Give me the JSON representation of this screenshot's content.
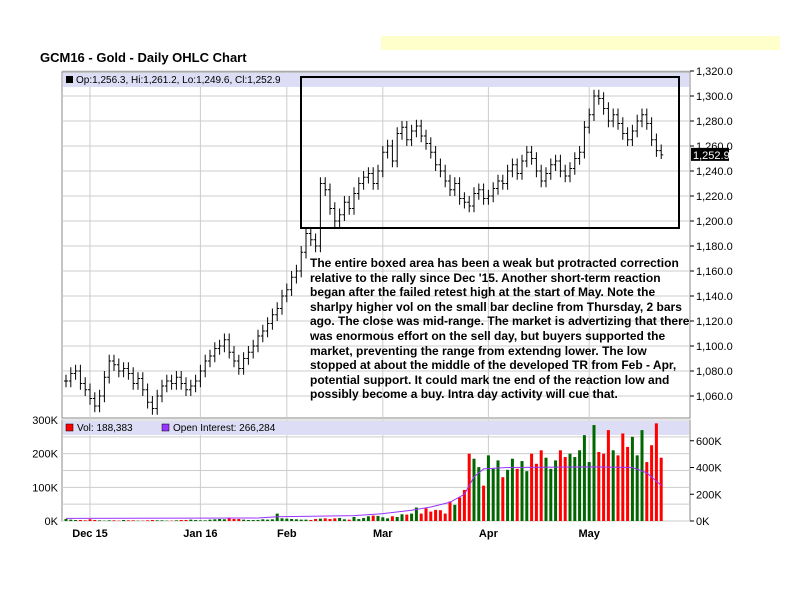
{
  "chart_data": {
    "type": "ohlc",
    "title": "GCM16 - Gold - Daily OHLC Chart",
    "price_legend": "Op:1,256.3, Hi:1,261.2, Lo:1,249.6, Cl:1,252.9",
    "last_price_label": "1,252.9",
    "price_axis": {
      "min": 1040,
      "max": 1320,
      "ticks": [
        "1,060.0",
        "1,080.0",
        "1,100.0",
        "1,120.0",
        "1,140.0",
        "1,160.0",
        "1,180.0",
        "1,200.0",
        "1,220.0",
        "1,240.0",
        "1,260.0",
        "1,280.0",
        "1,300.0",
        "1,320.0"
      ],
      "tick_values": [
        1060,
        1080,
        1100,
        1120,
        1140,
        1160,
        1180,
        1200,
        1220,
        1240,
        1260,
        1280,
        1300,
        1320
      ]
    },
    "x_labels": [
      {
        "label": "Dec 15",
        "bar": 5
      },
      {
        "label": "Jan 16",
        "bar": 28
      },
      {
        "label": "Feb",
        "bar": 46
      },
      {
        "label": "Mar",
        "bar": 66
      },
      {
        "label": "Apr",
        "bar": 88
      },
      {
        "label": "May",
        "bar": 109
      }
    ],
    "close": [
      1072,
      1078,
      1080,
      1070,
      1065,
      1058,
      1052,
      1060,
      1075,
      1088,
      1085,
      1080,
      1082,
      1078,
      1070,
      1074,
      1065,
      1055,
      1050,
      1060,
      1068,
      1072,
      1070,
      1075,
      1070,
      1065,
      1068,
      1072,
      1080,
      1088,
      1092,
      1098,
      1100,
      1105,
      1095,
      1088,
      1082,
      1090,
      1095,
      1100,
      1108,
      1112,
      1118,
      1125,
      1130,
      1140,
      1145,
      1155,
      1160,
      1175,
      1190,
      1185,
      1180,
      1230,
      1225,
      1210,
      1200,
      1205,
      1215,
      1210,
      1222,
      1230,
      1235,
      1238,
      1230,
      1240,
      1255,
      1260,
      1248,
      1270,
      1275,
      1265,
      1272,
      1276,
      1268,
      1262,
      1255,
      1245,
      1240,
      1232,
      1225,
      1230,
      1218,
      1215,
      1212,
      1222,
      1225,
      1218,
      1220,
      1226,
      1232,
      1230,
      1240,
      1245,
      1238,
      1248,
      1255,
      1250,
      1240,
      1232,
      1238,
      1245,
      1248,
      1240,
      1236,
      1242,
      1250,
      1255,
      1275,
      1285,
      1300,
      1298,
      1290,
      1280,
      1285,
      1278,
      1270,
      1265,
      1272,
      1280,
      1285,
      1278,
      1265,
      1256.3,
      1252.9
    ],
    "last_bar": {
      "open": 1256.3,
      "high": 1261.2,
      "low": 1249.6,
      "close": 1252.9
    },
    "volume_legend": "Vol: 188,383",
    "oi_legend": "Open Interest: 266,284",
    "volume_axis": {
      "min": 0,
      "max": 300,
      "ticks": [
        "0K",
        "100K",
        "200K",
        "300K"
      ],
      "tick_values": [
        0,
        100,
        200,
        300
      ]
    },
    "oi_axis": {
      "min": 0,
      "max": 800,
      "ticks": [
        "0K",
        "200K",
        "400K",
        "600K"
      ],
      "tick_values": [
        0,
        200,
        400,
        600
      ]
    },
    "volume_k": [
      6,
      4,
      3,
      3,
      2,
      5,
      3,
      2,
      1,
      2,
      2,
      1,
      3,
      2,
      2,
      1,
      1,
      2,
      3,
      2,
      2,
      1,
      1,
      2,
      3,
      3,
      4,
      3,
      2,
      2,
      4,
      5,
      6,
      5,
      10,
      6,
      6,
      4,
      3,
      3,
      3,
      5,
      4,
      5,
      22,
      8,
      7,
      6,
      5,
      4,
      4,
      3,
      6,
      7,
      8,
      6,
      8,
      9,
      5,
      4,
      12,
      6,
      9,
      14,
      16,
      15,
      11,
      8,
      14,
      12,
      20,
      19,
      22,
      40,
      22,
      38,
      28,
      33,
      32,
      22,
      58,
      48,
      70,
      92,
      200,
      185,
      160,
      105,
      195,
      155,
      180,
      130,
      152,
      185,
      155,
      178,
      148,
      200,
      170,
      210,
      188,
      155,
      180,
      210,
      190,
      200,
      190,
      210,
      255,
      175,
      285,
      205,
      200,
      270,
      210,
      195,
      260,
      220,
      250,
      195,
      270,
      175,
      225,
      290,
      188
    ],
    "oi_keyframes_k": [
      [
        0,
        20
      ],
      [
        40,
        22
      ],
      [
        44,
        32
      ],
      [
        60,
        40
      ],
      [
        66,
        55
      ],
      [
        72,
        80
      ],
      [
        76,
        105
      ],
      [
        80,
        140
      ],
      [
        83,
        200
      ],
      [
        85,
        330
      ],
      [
        87,
        390
      ],
      [
        92,
        400
      ],
      [
        110,
        405
      ],
      [
        118,
        400
      ],
      [
        121,
        360
      ],
      [
        124,
        266
      ]
    ],
    "colors": {
      "up": "#006600",
      "down": "#ff0000",
      "oi": "#9933ff",
      "legend_bg": "#ddddf5",
      "grid": "#cccccc"
    }
  },
  "annotation": "The entire boxed area has been a weak but protracted correction relative to the rally since Dec '15.  Another short-term reaction began after the failed retest high at the start of May.  Note the sharlpy higher vol on the small bar decline from Thursday, 2 bars ago.  The close was mid-range.  The market is advertizing that there was enormous effort on the sell day, but buyers supported the market, preventing the range from extendng lower.  The low stopped at about the middle of the developed TR from Feb - Apr, potential support.  It could mark tne end of the reaction low and possibly become a buy.  Intra day activity will cue that."
}
